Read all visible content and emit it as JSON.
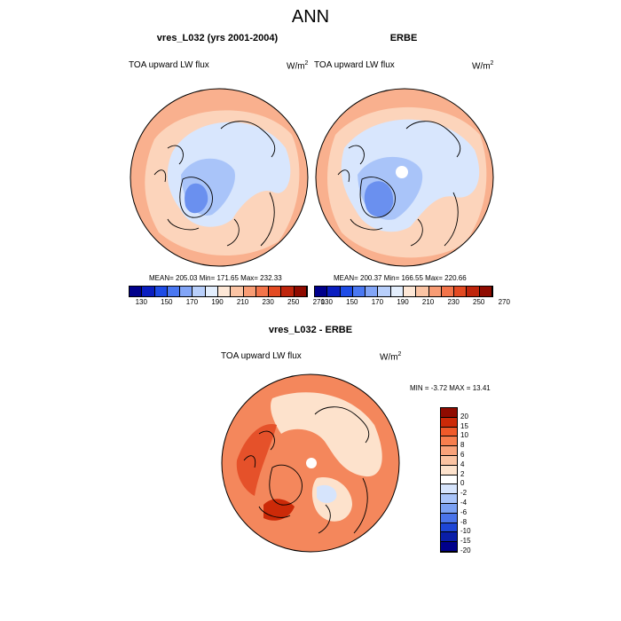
{
  "title": "ANN",
  "panels": [
    {
      "title": "vres_L032 (yrs 2001-2004)",
      "variable_label": "TOA upward LW flux",
      "units": "W/m",
      "units_power": "2",
      "stats": "MEAN= 205.03  Min= 171.65  Max= 232.33"
    },
    {
      "title": "ERBE",
      "variable_label": "TOA upward LW flux",
      "units": "W/m",
      "units_power": "2",
      "stats": "MEAN= 200.37  Min= 166.55  Max= 220.66"
    },
    {
      "title": "vres_L032 - ERBE",
      "variable_label": "TOA upward LW flux",
      "units": "W/m",
      "units_power": "2",
      "stats": "MIN =  -3.72 MAX =  13.41"
    }
  ],
  "abs_colorbar": {
    "tick_labels": [
      "130",
      "150",
      "170",
      "190",
      "210",
      "230",
      "250",
      "270"
    ],
    "colors": [
      "#00008b",
      "#0a1ec0",
      "#1e4ce6",
      "#4a78f2",
      "#82a5f7",
      "#b8cffb",
      "#e3eefd",
      "#fde7d6",
      "#fbc4a4",
      "#f89c74",
      "#f3744a",
      "#e34a22",
      "#bf250c",
      "#8f0b00"
    ]
  },
  "diff_colorbar": {
    "tick_labels": [
      "20",
      "15",
      "10",
      "8",
      "6",
      "4",
      "2",
      "0",
      "-2",
      "-4",
      "-6",
      "-8",
      "-10",
      "-15",
      "-20"
    ],
    "colors": [
      "#8f0b00",
      "#cc2a08",
      "#ef5a2a",
      "#f77e4e",
      "#f9a27a",
      "#fbc3a2",
      "#fde2cc",
      "#ffffff",
      "#d6e4fc",
      "#a9c4f9",
      "#7ba1f3",
      "#4a74ea",
      "#1e46d6",
      "#0a1ea8",
      "#00008b"
    ]
  },
  "map_colors": {
    "background_warm": "#f9b08e",
    "mid_warm": "#fcd4bb",
    "cold_light": "#d8e6fd",
    "cold_mid": "#a9c4f9",
    "cold_deep": "#6a90ef",
    "diff_warm": "#f4875c",
    "diff_hot": "#e5512a",
    "diff_light": "#fde2cc",
    "coastline": "#000000"
  }
}
